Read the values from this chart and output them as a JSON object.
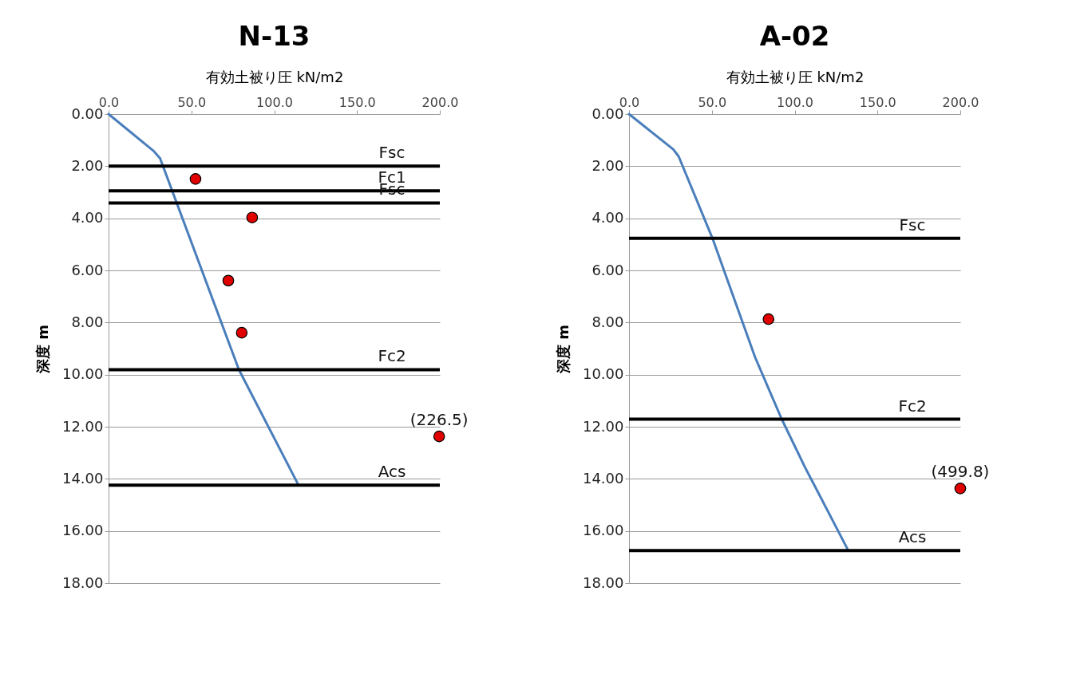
{
  "chart_data": [
    {
      "type": "line",
      "title": "N-13",
      "xlabel": "有効土被り圧 kN/m2",
      "ylabel": "深度 m",
      "xlim": [
        0,
        200
      ],
      "xticks": [
        {
          "value": 0,
          "label": "0.0"
        },
        {
          "value": 50,
          "label": "50.0"
        },
        {
          "value": 100,
          "label": "100.0"
        },
        {
          "value": 150,
          "label": "150.0"
        },
        {
          "value": 200,
          "label": "200.0"
        }
      ],
      "ylim": [
        18,
        0
      ],
      "yticks": [
        {
          "value": 0,
          "label": "0.00"
        },
        {
          "value": 2,
          "label": "2.00"
        },
        {
          "value": 4,
          "label": "4.00"
        },
        {
          "value": 6,
          "label": "6.00"
        },
        {
          "value": 8,
          "label": "8.00"
        },
        {
          "value": 10,
          "label": "10.00"
        },
        {
          "value": 12,
          "label": "12.00"
        },
        {
          "value": 14,
          "label": "14.00"
        },
        {
          "value": 16,
          "label": "16.00"
        },
        {
          "value": 18,
          "label": "18.00"
        }
      ],
      "grid": "y",
      "series": [
        {
          "type": "line",
          "color": "#4a7ebb",
          "x": [
            0,
            27.4,
            31.1,
            56.7,
            78.7,
            114.1
          ],
          "values": [
            0,
            1.43,
            1.7,
            6.06,
            9.81,
            14.17
          ]
        },
        {
          "type": "scatter",
          "color": "#e00000",
          "marker": "circle",
          "x": [
            52.5,
            86.7,
            72.3,
            80.4,
            199.6
          ],
          "values": [
            2.49,
            3.97,
            6.39,
            8.39,
            12.37
          ]
        }
      ],
      "annotations": [
        {
          "text": "(226.5)",
          "x": 199.6,
          "y": 12.37
        }
      ],
      "ref_lines": [
        {
          "axis": "y",
          "value": 2.0,
          "color": "#000000",
          "label": "Fsc"
        },
        {
          "axis": "y",
          "value": 2.95,
          "color": "#000000",
          "label": "Fc1"
        },
        {
          "axis": "y",
          "value": 3.41,
          "color": "#000000",
          "label": "Fsc"
        },
        {
          "axis": "y",
          "value": 9.81,
          "color": "#000000",
          "label": "Fc2"
        },
        {
          "axis": "y",
          "value": 14.24,
          "color": "#000000",
          "label": "Acs"
        }
      ]
    },
    {
      "type": "line",
      "title": "A-02",
      "xlabel": "有効土被り圧 kN/m2",
      "ylabel": "深度 m",
      "xlim": [
        0,
        200
      ],
      "xticks": [
        {
          "value": 0,
          "label": "0.0"
        },
        {
          "value": 50,
          "label": "50.0"
        },
        {
          "value": 100,
          "label": "100.0"
        },
        {
          "value": 150,
          "label": "150.0"
        },
        {
          "value": 200,
          "label": "200.0"
        }
      ],
      "ylim": [
        18,
        0
      ],
      "yticks": [
        {
          "value": 0,
          "label": "0.00"
        },
        {
          "value": 2,
          "label": "2.00"
        },
        {
          "value": 4,
          "label": "4.00"
        },
        {
          "value": 6,
          "label": "6.00"
        },
        {
          "value": 8,
          "label": "8.00"
        },
        {
          "value": 10,
          "label": "10.00"
        },
        {
          "value": 12,
          "label": "12.00"
        },
        {
          "value": 14,
          "label": "14.00"
        },
        {
          "value": 16,
          "label": "16.00"
        },
        {
          "value": 18,
          "label": "18.00"
        }
      ],
      "grid": "y",
      "series": [
        {
          "type": "line",
          "color": "#4a7ebb",
          "x": [
            0,
            26.8,
            30,
            50.4,
            76.1,
            92.2,
            106.2,
            131.8
          ],
          "values": [
            0,
            1.36,
            1.63,
            4.77,
            9.33,
            11.71,
            13.55,
            16.68
          ]
        },
        {
          "type": "scatter",
          "color": "#e00000",
          "marker": "circle",
          "x": [
            84.2,
            200
          ],
          "values": [
            7.87,
            14.37
          ]
        }
      ],
      "annotations": [
        {
          "text": "(499.8)",
          "x": 200,
          "y": 14.37
        }
      ],
      "ref_lines": [
        {
          "axis": "y",
          "value": 4.77,
          "color": "#000000",
          "label": "Fsc"
        },
        {
          "axis": "y",
          "value": 11.71,
          "color": "#000000",
          "label": "Fc2"
        },
        {
          "axis": "y",
          "value": 16.75,
          "color": "#000000",
          "label": "Acs"
        }
      ]
    }
  ]
}
